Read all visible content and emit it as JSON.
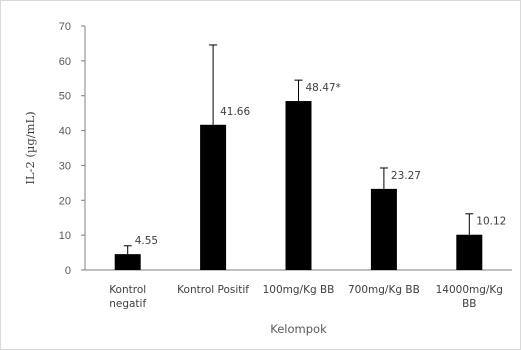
{
  "chart_data": {
    "type": "bar",
    "title": "",
    "xlabel": "Kelompok",
    "ylabel": "IL-2 (µg/mL)",
    "ylim": [
      0,
      70
    ],
    "yticks": [
      0,
      10,
      20,
      30,
      40,
      50,
      60,
      70
    ],
    "grid": false,
    "legend": "none",
    "bar_color": "#000000",
    "categories": [
      [
        "Kontrol",
        "negatif"
      ],
      [
        "Kontrol Positif"
      ],
      [
        "100mg/Kg BB"
      ],
      [
        "700mg/Kg BB"
      ],
      [
        "14000mg/Kg",
        "BB"
      ]
    ],
    "values": [
      4.55,
      41.66,
      48.47,
      23.27,
      10.12
    ],
    "error_upper": [
      2.4,
      22.9,
      6.0,
      6.0,
      6.0
    ],
    "data_labels": [
      "4.55",
      "41.66",
      "48.47*",
      "23.27",
      "10.12"
    ]
  }
}
